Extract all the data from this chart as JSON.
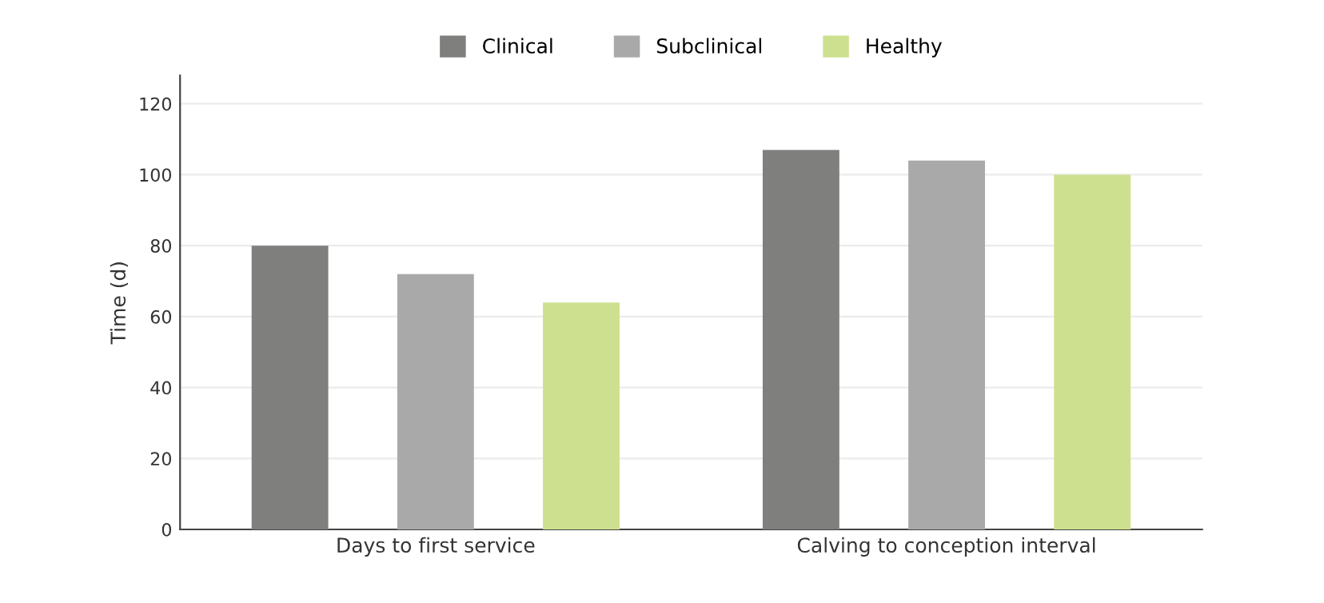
{
  "chart_data": {
    "type": "bar",
    "ylabel": "Time (d)",
    "categories": [
      "Days to first service",
      "Calving to conception interval"
    ],
    "series": [
      {
        "name": "Clinical",
        "color": "#7f7f7d",
        "values": [
          80,
          107
        ]
      },
      {
        "name": "Subclinical",
        "color": "#a9a9a9",
        "values": [
          72,
          104
        ]
      },
      {
        "name": "Healthy",
        "color": "#cde08f",
        "values": [
          64,
          100
        ]
      }
    ],
    "ylim": [
      0,
      128
    ],
    "yticks": [
      0,
      20,
      40,
      60,
      80,
      100,
      120
    ],
    "grid": "y",
    "legend": "top"
  }
}
